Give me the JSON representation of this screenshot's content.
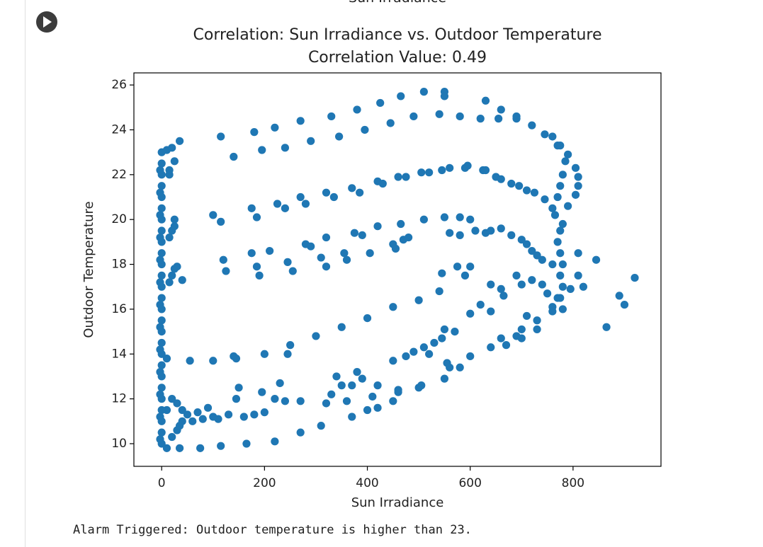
{
  "clipped_heading": "Sun Irradiance",
  "output": "Alarm Triggered: Outdoor temperature is higher than 23.",
  "chart_data": {
    "type": "scatter",
    "title": "Correlation: Sun Irradiance vs. Outdoor Temperature",
    "subtitle": "Correlation Value: 0.49",
    "xlabel": "Sun Irradiance",
    "ylabel": "Outdoor Temperature",
    "color": "#1f77b4",
    "xlim": [
      -54,
      971
    ],
    "ylim": [
      8.99,
      26.54
    ],
    "xticks": [
      0,
      200,
      400,
      600,
      800
    ],
    "yticks": [
      10,
      12,
      14,
      16,
      18,
      20,
      22,
      24,
      26
    ],
    "x": [
      20,
      35,
      115,
      180,
      220,
      270,
      330,
      380,
      425,
      465,
      510,
      550,
      550,
      630,
      660,
      690,
      720,
      745,
      770,
      790,
      805,
      810,
      810,
      805,
      790,
      140,
      195,
      240,
      290,
      345,
      395,
      445,
      490,
      540,
      580,
      620,
      655,
      690,
      760,
      775,
      785,
      780,
      775,
      770,
      100,
      115,
      175,
      185,
      225,
      240,
      270,
      280,
      320,
      335,
      370,
      385,
      420,
      430,
      460,
      475,
      505,
      520,
      545,
      560,
      590,
      595,
      625,
      630,
      650,
      660,
      680,
      695,
      710,
      725,
      745,
      760,
      765,
      780,
      775,
      770,
      775,
      780,
      775,
      780,
      775,
      120,
      125,
      175,
      185,
      190,
      210,
      245,
      255,
      280,
      290,
      310,
      320,
      320,
      355,
      360,
      375,
      390,
      405,
      420,
      450,
      455,
      470,
      480,
      465,
      510,
      550,
      560,
      580,
      580,
      600,
      610,
      630,
      640,
      660,
      680,
      700,
      710,
      720,
      730,
      740,
      760,
      600,
      590,
      575,
      545,
      540,
      640,
      660,
      665,
      690,
      700,
      720,
      740,
      750,
      760,
      770,
      795,
      820,
      810,
      810,
      845,
      920,
      890,
      900,
      865,
      780,
      55,
      100,
      140,
      145,
      200,
      245,
      250,
      300,
      350,
      400,
      450,
      500,
      620,
      640,
      600,
      550,
      570,
      450,
      475,
      490,
      510,
      530,
      545,
      520,
      380,
      340,
      350,
      370,
      390,
      420,
      460,
      500,
      550,
      560,
      600,
      640,
      660,
      700,
      730,
      760,
      710,
      730,
      700,
      670,
      690,
      580,
      555,
      330,
      320,
      310,
      360,
      370,
      400,
      410,
      450,
      460,
      505,
      420,
      270,
      240,
      200,
      220,
      195,
      150,
      145,
      230,
      270,
      220,
      165,
      115,
      75,
      35,
      10,
      130,
      160,
      180,
      100,
      80,
      60,
      40,
      30,
      20,
      10,
      40,
      50,
      70,
      90,
      110,
      30,
      20,
      35,
      0,
      0,
      0,
      0,
      0,
      0,
      0,
      0,
      0,
      0,
      0,
      0,
      0,
      0,
      0,
      0,
      0,
      0,
      0,
      0,
      0,
      0,
      0,
      0,
      0,
      0,
      0,
      -3,
      -3,
      -3,
      -3,
      -3,
      -3,
      -3,
      -3,
      -3,
      -3,
      -3,
      -3,
      -3,
      15,
      20,
      25,
      30,
      40,
      15,
      20,
      25,
      25,
      10,
      15,
      25,
      15,
      10
    ],
    "values": [
      23.2,
      23.5,
      23.7,
      23.9,
      24.1,
      24.4,
      24.6,
      24.9,
      25.2,
      25.5,
      25.7,
      25.7,
      25.5,
      25.3,
      24.9,
      24.6,
      24.2,
      23.8,
      23.3,
      22.9,
      22.3,
      21.9,
      21.5,
      21.1,
      20.6,
      22.8,
      23.1,
      23.2,
      23.5,
      23.7,
      24.0,
      24.3,
      24.6,
      24.7,
      24.6,
      24.5,
      24.5,
      24.5,
      23.7,
      23.3,
      22.6,
      22.0,
      21.5,
      21.0,
      20.2,
      19.9,
      20.5,
      20.1,
      20.7,
      20.5,
      21.0,
      20.7,
      21.2,
      21.0,
      21.4,
      21.2,
      21.7,
      21.6,
      21.9,
      21.9,
      22.1,
      22.1,
      22.2,
      22.3,
      22.3,
      22.4,
      22.2,
      22.2,
      21.9,
      21.8,
      21.6,
      21.5,
      21.3,
      21.2,
      20.9,
      20.5,
      20.2,
      19.8,
      19.5,
      19.0,
      18.5,
      18.0,
      17.5,
      17.0,
      16.5,
      18.2,
      17.7,
      18.5,
      17.9,
      17.5,
      18.6,
      18.1,
      17.7,
      18.9,
      18.8,
      18.3,
      17.9,
      19.2,
      18.5,
      18.2,
      19.4,
      19.3,
      18.5,
      19.7,
      18.9,
      18.7,
      19.1,
      19.2,
      19.8,
      20.0,
      20.1,
      19.4,
      19.3,
      20.1,
      20.0,
      19.5,
      19.4,
      19.5,
      19.6,
      19.3,
      19.1,
      18.9,
      18.6,
      18.4,
      18.2,
      18.0,
      17.9,
      17.5,
      17.9,
      17.6,
      16.8,
      17.1,
      16.9,
      16.6,
      17.5,
      17.1,
      17.3,
      17.1,
      16.7,
      16.1,
      16.5,
      16.9,
      17.0,
      17.5,
      18.5,
      18.2,
      17.4,
      16.6,
      16.2,
      15.2,
      16.0,
      13.7,
      13.7,
      13.9,
      13.8,
      14.0,
      14.0,
      14.4,
      14.8,
      15.2,
      15.6,
      16.1,
      16.4,
      16.2,
      15.9,
      15.8,
      15.1,
      15.0,
      13.7,
      13.9,
      14.1,
      14.3,
      14.5,
      14.7,
      14.0,
      13.2,
      13.0,
      12.6,
      12.6,
      12.9,
      12.6,
      12.4,
      12.5,
      12.9,
      13.4,
      13.9,
      14.3,
      14.7,
      15.1,
      15.5,
      15.9,
      15.7,
      15.1,
      14.7,
      14.4,
      14.8,
      13.4,
      13.6,
      12.2,
      11.8,
      10.8,
      11.9,
      11.2,
      11.5,
      12.1,
      11.9,
      12.3,
      12.6,
      11.6,
      11.9,
      11.9,
      11.4,
      12.0,
      12.3,
      12.5,
      12.0,
      12.7,
      10.5,
      10.1,
      10.0,
      9.9,
      9.8,
      9.8,
      9.8,
      11.3,
      11.2,
      11.3,
      11.2,
      11.1,
      11.0,
      11.5,
      11.8,
      12.0,
      11.5,
      11.0,
      11.3,
      11.4,
      11.6,
      11.1,
      10.6,
      10.3,
      10.8,
      10,
      10.5,
      11,
      11.5,
      12,
      12.5,
      13,
      13.5,
      14,
      14.5,
      15,
      15.5,
      16,
      16.5,
      17,
      17.5,
      18,
      18.5,
      19,
      19.5,
      20,
      20.5,
      21,
      21.5,
      22,
      22.5,
      23,
      10.2,
      11.2,
      12.2,
      13.2,
      14.2,
      15.2,
      16.2,
      17.2,
      18.2,
      19.2,
      20.2,
      21.2,
      22.2,
      17.2,
      17.5,
      17.8,
      17.9,
      17.3,
      19.2,
      19.5,
      19.7,
      20.0,
      13.8,
      22.0,
      22.6,
      22.2,
      23.1
    ]
  }
}
